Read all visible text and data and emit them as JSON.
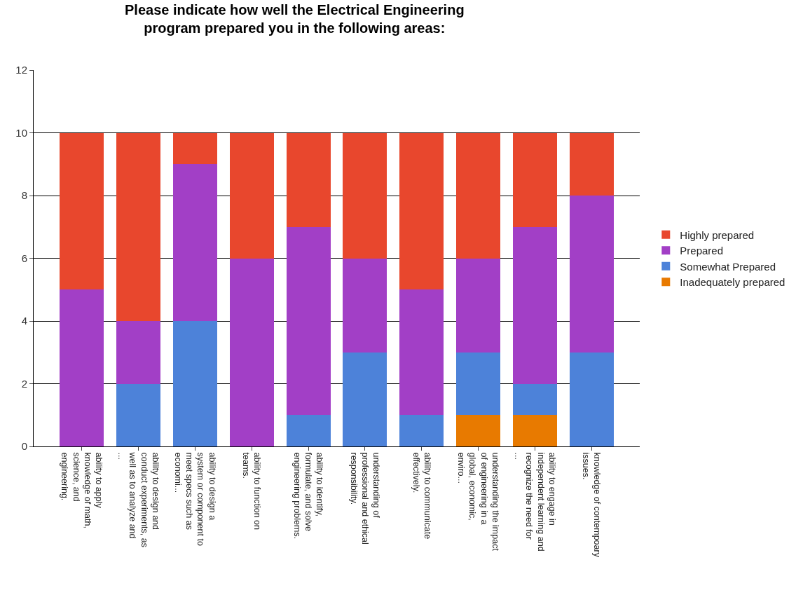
{
  "chart_data": {
    "type": "bar",
    "stacked": true,
    "title": "Please indicate how well the Electrical Engineering program prepared you in the following areas:",
    "categories": [
      "ability to apply knowledge of math, science, and engineering.",
      "ability to design and conduct experiments, as well as to analyze and ...",
      "ability to design a system or component to meet specs such as economi...",
      "ability to function on teams.",
      "ability to identify, formulate, and solve engineering problems.",
      "understanding of professional and ethical responsibility.",
      "ability to communicate effectively.",
      "understanding the impact of engineering in a global, economic, enviro...",
      "ability to engage in independent learning and recognize the need for ...",
      "knowledge of contempoary issues."
    ],
    "series": [
      {
        "name": "Inadequately prepared",
        "color": "#e87a00",
        "values": [
          0,
          0,
          0,
          0,
          0,
          0,
          0,
          1,
          1,
          0
        ]
      },
      {
        "name": "Somewhat Prepared",
        "color": "#4d82d9",
        "values": [
          0,
          2,
          4,
          0,
          1,
          3,
          1,
          2,
          1,
          3
        ]
      },
      {
        "name": "Prepared",
        "color": "#a23fc6",
        "values": [
          5,
          2,
          5,
          6,
          6,
          3,
          4,
          3,
          5,
          5
        ]
      },
      {
        "name": "Highly prepared",
        "color": "#e8472d",
        "values": [
          5,
          6,
          1,
          4,
          3,
          4,
          5,
          4,
          3,
          2
        ]
      }
    ],
    "ylim": [
      0,
      12
    ],
    "yticks": [
      0,
      2,
      4,
      6,
      8,
      10,
      12
    ],
    "grid": "y",
    "legend": "right"
  }
}
